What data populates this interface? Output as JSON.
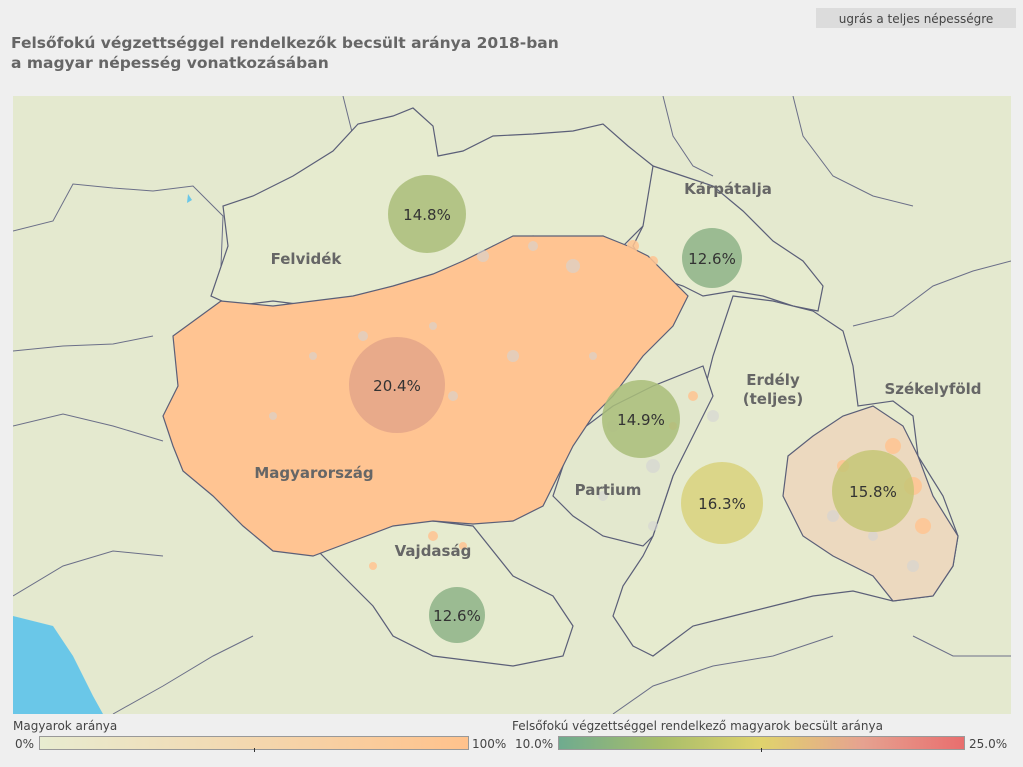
{
  "header": {
    "button_label": "ugrás a teljes népességre",
    "title_line1": "Felsőfokú végzettséggel rendelkezők becsült aránya 2018-ban",
    "title_line2": "a magyar népesség vonatkozásában"
  },
  "regions": [
    {
      "id": "felvidek",
      "name": "Felvidék",
      "value_label": "14.8%",
      "value": 14.8
    },
    {
      "id": "karpatalja",
      "name": "Kárpátalja",
      "value_label": "12.6%",
      "value": 12.6
    },
    {
      "id": "magyarorszag",
      "name": "Magyarország",
      "value_label": "20.4%",
      "value": 20.4
    },
    {
      "id": "partium",
      "name": "Partium",
      "value_label": "14.9%",
      "value": 14.9
    },
    {
      "id": "erdely",
      "name_line1": "Erdély",
      "name_line2": "(teljes)",
      "value_label": "16.3%",
      "value": 16.3
    },
    {
      "id": "szekelyfold",
      "name": "Székelyföld",
      "value_label": "15.8%",
      "value": 15.8
    },
    {
      "id": "vajdasag",
      "name": "Vajdaság",
      "value_label": "12.6%",
      "value": 12.6
    }
  ],
  "legend": {
    "population": {
      "title": "Magyarok aránya",
      "min_label": "0%",
      "max_label": "100%",
      "color_start": "#e8ecd0",
      "color_end": "#ffc28c"
    },
    "education": {
      "title": "Felsőfokú végzettséggel rendelkező magyarok becsült aránya",
      "min_label": "10.0%",
      "max_label": "25.0%",
      "colors": [
        "#6fab8f",
        "#a7bd6a",
        "#e0d36d",
        "#e6a290",
        "#e86e6e"
      ]
    }
  },
  "colors": {
    "hungary_fill": "#ffc492",
    "region_fill": "#e6ebcf",
    "border": "#5b5f78",
    "water": "#6ac7e8"
  }
}
